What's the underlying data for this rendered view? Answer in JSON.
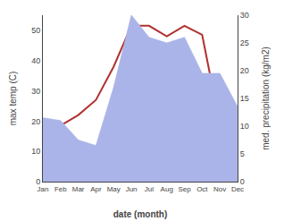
{
  "chart_data": {
    "type": "line",
    "xlabel": "date (month)",
    "ylabel": "max temp (C)",
    "y2label": "med. precipitation (kg/m2)",
    "categories": [
      "Jan",
      "Feb",
      "Mar",
      "Apr",
      "May",
      "Jun",
      "Jul",
      "Aug",
      "Sep",
      "Oct",
      "Nov",
      "Dec"
    ],
    "series": [
      {
        "type": "area",
        "axis": "y2",
        "color": "#aab4e8",
        "values": [
          11.5,
          11.0,
          7.5,
          6.5,
          17.0,
          30.0,
          26.0,
          25.0,
          26.0,
          19.5,
          19.5,
          13.5
        ]
      },
      {
        "type": "line",
        "color": "#b03030",
        "values": [
          16.5,
          18.5,
          22.0,
          27.0,
          38.0,
          51.5,
          51.5,
          48.0,
          51.5,
          48.5,
          19.0,
          10.0
        ]
      }
    ],
    "ylim": [
      0,
      55
    ],
    "yticks": [
      0,
      10,
      20,
      30,
      40,
      50
    ],
    "y2lim": [
      0,
      30
    ],
    "y2ticks": [
      0,
      5,
      10,
      15,
      20,
      25,
      30
    ],
    "grid": false
  }
}
